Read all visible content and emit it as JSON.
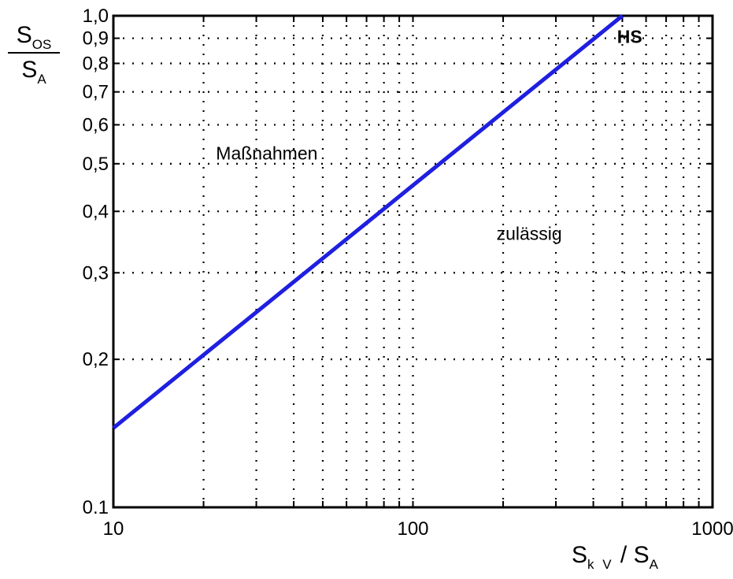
{
  "chart_data": {
    "type": "line",
    "title": "",
    "x_scale": "log",
    "y_scale": "log",
    "xlim": [
      10,
      1000
    ],
    "ylim": [
      0.1,
      1.0
    ],
    "grid": true,
    "x_tick_labels": [
      {
        "value": 10,
        "label": "10"
      },
      {
        "value": 100,
        "label": "100"
      },
      {
        "value": 1000,
        "label": "1000"
      }
    ],
    "y_tick_labels": [
      {
        "value": 0.1,
        "label": "0.1"
      },
      {
        "value": 0.2,
        "label": "0,2"
      },
      {
        "value": 0.3,
        "label": "0,3"
      },
      {
        "value": 0.4,
        "label": "0,4"
      },
      {
        "value": 0.5,
        "label": "0,5"
      },
      {
        "value": 0.6,
        "label": "0,6"
      },
      {
        "value": 0.7,
        "label": "0,7"
      },
      {
        "value": 0.8,
        "label": "0,8"
      },
      {
        "value": 0.9,
        "label": "0,9"
      },
      {
        "value": 1.0,
        "label": "1,0"
      }
    ],
    "ylabel": {
      "num_main": "S",
      "num_sub": "OS",
      "den_main": "S",
      "den_sub": "A"
    },
    "xlabel": {
      "main1": "S",
      "sub1": "k V",
      "slash": " / ",
      "main2": "S",
      "sub2": "A"
    },
    "series": [
      {
        "name": "HS",
        "color": "#1f1fe0",
        "x": [
          10,
          500
        ],
        "y": [
          0.145,
          1.0
        ]
      }
    ],
    "annotations": [
      {
        "text": "HS",
        "x": 480,
        "y": 0.88,
        "bold": true
      },
      {
        "text": "Maßnahmen",
        "x": 22,
        "y": 0.51,
        "bold": false
      },
      {
        "text": "zulässig",
        "x": 190,
        "y": 0.35,
        "bold": false
      }
    ]
  }
}
